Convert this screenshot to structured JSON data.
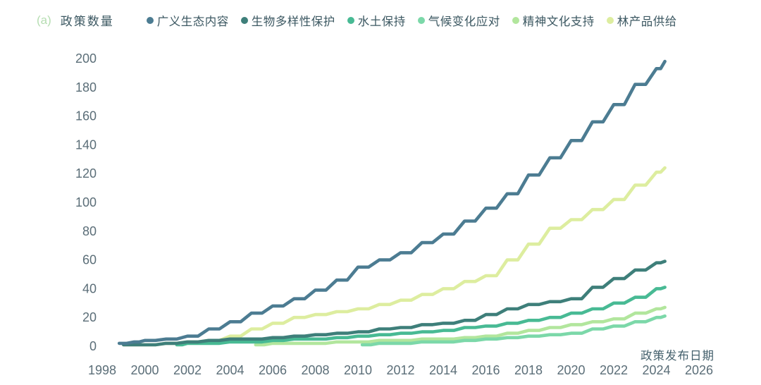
{
  "header": {
    "panel_label": "(a)",
    "title": "政策数量"
  },
  "legend": [
    {
      "label": "广义生态内容",
      "color": "#4c7c92"
    },
    {
      "label": "生物多样性保护",
      "color": "#3e7f7a"
    },
    {
      "label": "水土保持",
      "color": "#48ba94"
    },
    {
      "label": "气候变化应对",
      "color": "#7cd8a9"
    },
    {
      "label": "精神文化支持",
      "color": "#b2e69d"
    },
    {
      "label": "林产品供给",
      "color": "#dded9f"
    }
  ],
  "chart_data": {
    "type": "line",
    "title": "政策数量",
    "xlabel": "政策发布日期",
    "ylabel": "政策数量",
    "grid": false,
    "legend_position": "top",
    "xlim": [
      1998,
      2026
    ],
    "ylim": [
      0,
      200
    ],
    "x_ticks": [
      1998,
      2000,
      2002,
      2004,
      2006,
      2008,
      2010,
      2012,
      2014,
      2016,
      2018,
      2020,
      2022,
      2024,
      2026
    ],
    "y_ticks": [
      0,
      20,
      40,
      60,
      80,
      100,
      120,
      140,
      160,
      180,
      200
    ],
    "series": [
      {
        "name": "广义生态内容",
        "color": "#4c7c92",
        "points": [
          [
            1998.8,
            2
          ],
          [
            1999.5,
            3
          ],
          [
            2000,
            4
          ],
          [
            2001,
            5
          ],
          [
            2002,
            7
          ],
          [
            2003,
            12
          ],
          [
            2004,
            17
          ],
          [
            2005,
            23
          ],
          [
            2006,
            28
          ],
          [
            2007,
            33
          ],
          [
            2008,
            39
          ],
          [
            2009,
            46
          ],
          [
            2010,
            55
          ],
          [
            2011,
            60
          ],
          [
            2012,
            65
          ],
          [
            2013,
            72
          ],
          [
            2014,
            78
          ],
          [
            2015,
            87
          ],
          [
            2016,
            96
          ],
          [
            2017,
            106
          ],
          [
            2018,
            119
          ],
          [
            2019,
            131
          ],
          [
            2020,
            143
          ],
          [
            2021,
            156
          ],
          [
            2022,
            168
          ],
          [
            2023,
            182
          ],
          [
            2024,
            193
          ],
          [
            2024.4,
            198
          ]
        ]
      },
      {
        "name": "生物多样性保护",
        "color": "#3e7f7a",
        "points": [
          [
            1999,
            1
          ],
          [
            2000,
            1
          ],
          [
            2001,
            2
          ],
          [
            2002,
            3
          ],
          [
            2003,
            4
          ],
          [
            2004,
            5
          ],
          [
            2005,
            5
          ],
          [
            2006,
            6
          ],
          [
            2007,
            7
          ],
          [
            2008,
            8
          ],
          [
            2009,
            9
          ],
          [
            2010,
            10
          ],
          [
            2011,
            12
          ],
          [
            2012,
            13
          ],
          [
            2013,
            15
          ],
          [
            2014,
            16
          ],
          [
            2015,
            18
          ],
          [
            2016,
            22
          ],
          [
            2017,
            26
          ],
          [
            2018,
            29
          ],
          [
            2019,
            31
          ],
          [
            2020,
            33
          ],
          [
            2021,
            41
          ],
          [
            2022,
            47
          ],
          [
            2023,
            53
          ],
          [
            2024,
            58
          ],
          [
            2024.4,
            59
          ]
        ]
      },
      {
        "name": "水土保持",
        "color": "#48ba94",
        "points": [
          [
            2001.5,
            1
          ],
          [
            2002,
            2
          ],
          [
            2003,
            2
          ],
          [
            2004,
            3
          ],
          [
            2005,
            3
          ],
          [
            2006,
            4
          ],
          [
            2007,
            5
          ],
          [
            2008,
            5
          ],
          [
            2009,
            6
          ],
          [
            2010,
            7
          ],
          [
            2011,
            8
          ],
          [
            2012,
            9
          ],
          [
            2013,
            10
          ],
          [
            2014,
            11
          ],
          [
            2015,
            13
          ],
          [
            2016,
            14
          ],
          [
            2017,
            16
          ],
          [
            2018,
            18
          ],
          [
            2019,
            20
          ],
          [
            2020,
            23
          ],
          [
            2021,
            26
          ],
          [
            2022,
            30
          ],
          [
            2023,
            34
          ],
          [
            2024,
            40
          ],
          [
            2024.4,
            41
          ]
        ]
      },
      {
        "name": "气候变化应对",
        "color": "#7cd8a9",
        "points": [
          [
            2010.2,
            1
          ],
          [
            2011,
            2
          ],
          [
            2012,
            2
          ],
          [
            2013,
            3
          ],
          [
            2014,
            3
          ],
          [
            2015,
            4
          ],
          [
            2016,
            5
          ],
          [
            2017,
            6
          ],
          [
            2018,
            7
          ],
          [
            2019,
            8
          ],
          [
            2020,
            9
          ],
          [
            2021,
            12
          ],
          [
            2022,
            14
          ],
          [
            2023,
            17
          ],
          [
            2024,
            20
          ],
          [
            2024.4,
            21
          ]
        ]
      },
      {
        "name": "精神文化支持",
        "color": "#b2e69d",
        "points": [
          [
            2005.2,
            1
          ],
          [
            2006,
            2
          ],
          [
            2007,
            2
          ],
          [
            2008,
            2
          ],
          [
            2009,
            3
          ],
          [
            2010,
            3
          ],
          [
            2011,
            4
          ],
          [
            2012,
            4
          ],
          [
            2013,
            5
          ],
          [
            2014,
            5
          ],
          [
            2015,
            6
          ],
          [
            2016,
            7
          ],
          [
            2017,
            9
          ],
          [
            2018,
            11
          ],
          [
            2019,
            13
          ],
          [
            2020,
            15
          ],
          [
            2021,
            17
          ],
          [
            2022,
            19
          ],
          [
            2023,
            23
          ],
          [
            2024,
            26
          ],
          [
            2024.4,
            27
          ]
        ]
      },
      {
        "name": "林产品供给",
        "color": "#dded9f",
        "points": [
          [
            1999,
            1
          ],
          [
            2000,
            1
          ],
          [
            2001,
            2
          ],
          [
            2002,
            3
          ],
          [
            2003,
            4
          ],
          [
            2004,
            7
          ],
          [
            2005,
            12
          ],
          [
            2006,
            16
          ],
          [
            2007,
            20
          ],
          [
            2008,
            22
          ],
          [
            2009,
            24
          ],
          [
            2010,
            26
          ],
          [
            2011,
            29
          ],
          [
            2012,
            32
          ],
          [
            2013,
            36
          ],
          [
            2014,
            40
          ],
          [
            2015,
            45
          ],
          [
            2016,
            49
          ],
          [
            2017,
            60
          ],
          [
            2018,
            71
          ],
          [
            2019,
            82
          ],
          [
            2020,
            88
          ],
          [
            2021,
            95
          ],
          [
            2022,
            102
          ],
          [
            2023,
            112
          ],
          [
            2024,
            121
          ],
          [
            2024.4,
            124
          ]
        ]
      }
    ]
  }
}
